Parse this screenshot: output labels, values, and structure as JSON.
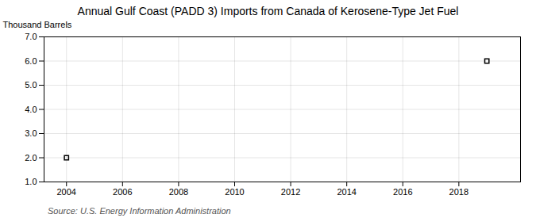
{
  "chart_data": {
    "type": "scatter",
    "title": "Annual Gulf Coast (PADD 3) Imports from Canada of Kerosene-Type Jet Fuel",
    "ylabel": "Thousand Barrels",
    "source": "Source: U.S. Energy Information Administration",
    "x": [
      2004,
      2019
    ],
    "values": [
      2,
      6
    ],
    "marker": "square",
    "xlim": [
      2003.2,
      2020.2
    ],
    "ylim": [
      1.0,
      7.0
    ],
    "xticks": [
      2004,
      2006,
      2008,
      2010,
      2012,
      2014,
      2016,
      2018
    ],
    "yticks": [
      {
        "value": 1,
        "label": "1.0"
      },
      {
        "value": 2,
        "label": "2.0"
      },
      {
        "value": 3,
        "label": "3.0"
      },
      {
        "value": 4,
        "label": "4.0"
      },
      {
        "value": 5,
        "label": "5.0"
      },
      {
        "value": 6,
        "label": "6.0"
      },
      {
        "value": 7,
        "label": "7.0"
      }
    ],
    "grid": true
  }
}
